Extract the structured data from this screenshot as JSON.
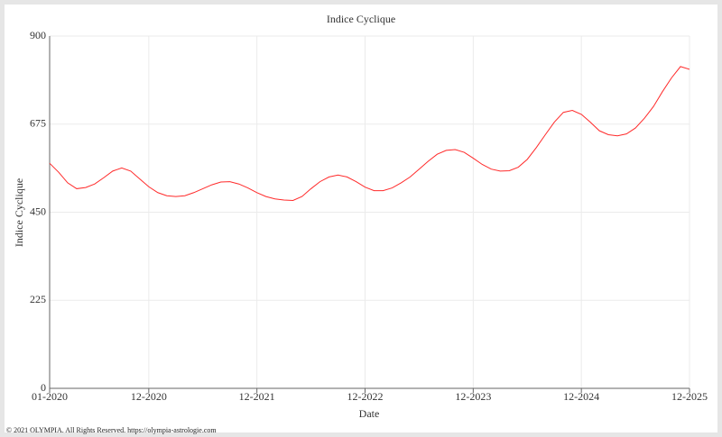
{
  "chart_data": {
    "type": "line",
    "title": "Indice Cyclique",
    "x_label": "Date",
    "y_label": "Indice Cyclique",
    "x": [
      "01-2020",
      "02-2020",
      "03-2020",
      "04-2020",
      "05-2020",
      "06-2020",
      "07-2020",
      "08-2020",
      "09-2020",
      "10-2020",
      "11-2020",
      "12-2020",
      "01-2021",
      "02-2021",
      "03-2021",
      "04-2021",
      "05-2021",
      "06-2021",
      "07-2021",
      "08-2021",
      "09-2021",
      "10-2021",
      "11-2021",
      "12-2021",
      "01-2022",
      "02-2022",
      "03-2022",
      "04-2022",
      "05-2022",
      "06-2022",
      "07-2022",
      "08-2022",
      "09-2022",
      "10-2022",
      "11-2022",
      "12-2022",
      "01-2023",
      "02-2023",
      "03-2023",
      "04-2023",
      "05-2023",
      "06-2023",
      "07-2023",
      "08-2023",
      "09-2023",
      "10-2023",
      "11-2023",
      "12-2023",
      "01-2024",
      "02-2024",
      "03-2024",
      "04-2024",
      "05-2024",
      "06-2024",
      "07-2024",
      "08-2024",
      "09-2024",
      "10-2024",
      "11-2024",
      "12-2024",
      "01-2025",
      "02-2025",
      "03-2025",
      "04-2025",
      "05-2025",
      "06-2025",
      "07-2025",
      "08-2025",
      "09-2025",
      "10-2025",
      "11-2025",
      "12-2025"
    ],
    "series": [
      {
        "name": "Indice Cyclique",
        "color": "#ff2a2a",
        "values": [
          575,
          552,
          525,
          510,
          513,
          522,
          538,
          555,
          563,
          555,
          535,
          515,
          500,
          492,
          490,
          492,
          500,
          510,
          520,
          527,
          528,
          522,
          512,
          500,
          490,
          484,
          481,
          480,
          490,
          510,
          528,
          540,
          545,
          540,
          528,
          514,
          505,
          505,
          512,
          525,
          540,
          560,
          580,
          598,
          608,
          610,
          603,
          588,
          572,
          560,
          555,
          556,
          565,
          585,
          615,
          648,
          680,
          705,
          710,
          700,
          680,
          658,
          648,
          645,
          650,
          665,
          690,
          720,
          758,
          793,
          822,
          815
        ]
      }
    ],
    "xlim": [
      "01-2020",
      "12-2025"
    ],
    "xticks": [
      "01-2020",
      "12-2020",
      "12-2021",
      "12-2022",
      "12-2023",
      "12-2024",
      "12-2025"
    ],
    "ylim": [
      0,
      900
    ],
    "yticks": [
      0,
      225,
      450,
      675,
      900
    ],
    "grid": true
  },
  "footer": "© 2021 OLYMPIA. All Rights Reserved. https://olympia-astrologie.com"
}
